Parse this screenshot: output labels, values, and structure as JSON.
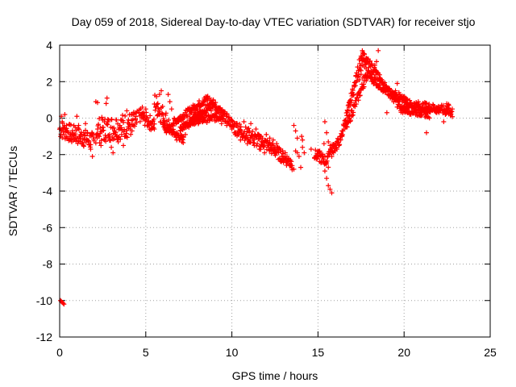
{
  "chart_data": {
    "type": "scatter",
    "title": "Day 059 of 2018, Sidereal Day-to-day VTEC variation (SDTVAR) for receiver stjo",
    "xlabel": "GPS time / hours",
    "ylabel": "SDTVAR / TECUs",
    "xlim": [
      0,
      25
    ],
    "ylim": [
      -12,
      4
    ],
    "xticks": [
      0,
      5,
      10,
      15,
      20,
      25
    ],
    "yticks": [
      -12,
      -10,
      -8,
      -6,
      -4,
      -2,
      0,
      2,
      4
    ],
    "grid": true,
    "marker": "+",
    "series": [
      {
        "name": "SDTVAR",
        "color": "#ff0000",
        "points": [
          [
            0.05,
            -10.0
          ],
          [
            0.1,
            -10.05
          ],
          [
            0.15,
            -10.1
          ],
          [
            0.2,
            -10.15
          ],
          [
            0.25,
            -10.2
          ],
          [
            0.1,
            0.1
          ],
          [
            0.15,
            -0.2
          ],
          [
            0.25,
            -0.5
          ],
          [
            0.3,
            0.2
          ],
          [
            0.4,
            -0.4
          ],
          [
            0.5,
            -0.8
          ],
          [
            0.6,
            -1.0
          ],
          [
            0.7,
            -1.3
          ],
          [
            0.8,
            -0.9
          ],
          [
            0.9,
            -0.5
          ],
          [
            1.0,
            0.1
          ],
          [
            1.1,
            -0.4
          ],
          [
            1.2,
            -1.0
          ],
          [
            1.3,
            -1.4
          ],
          [
            1.4,
            -0.8
          ],
          [
            1.5,
            -0.3
          ],
          [
            1.6,
            -0.8
          ],
          [
            1.7,
            -1.3
          ],
          [
            1.8,
            -1.7
          ],
          [
            1.9,
            -2.1
          ],
          [
            2.1,
            0.9
          ],
          [
            2.2,
            0.85
          ],
          [
            2.2,
            -0.6
          ],
          [
            2.3,
            -1.0
          ],
          [
            2.4,
            -1.5
          ],
          [
            2.5,
            -0.5
          ],
          [
            2.6,
            -1.2
          ],
          [
            2.7,
            0.8
          ],
          [
            2.75,
            1.1
          ],
          [
            2.8,
            -0.2
          ],
          [
            2.9,
            -0.9
          ],
          [
            3.0,
            -1.6
          ],
          [
            3.1,
            -1.9
          ],
          [
            3.2,
            -0.7
          ],
          [
            3.3,
            -0.1
          ],
          [
            3.4,
            -1.3
          ],
          [
            3.5,
            -0.4
          ],
          [
            3.6,
            -0.9
          ],
          [
            3.7,
            -1.5
          ],
          [
            3.9,
            0.4
          ],
          [
            4.0,
            -0.1
          ],
          [
            4.1,
            -0.6
          ],
          [
            4.2,
            -0.7
          ],
          [
            4.3,
            0.2
          ],
          [
            4.4,
            -0.1
          ],
          [
            4.8,
            0.6
          ],
          [
            4.9,
            0.1
          ],
          [
            5.0,
            0.5
          ],
          [
            5.1,
            -0.2
          ],
          [
            5.3,
            -0.3
          ],
          [
            5.5,
            -0.6
          ],
          [
            5.7,
            0.8
          ],
          [
            5.8,
            1.3
          ],
          [
            5.9,
            1.5
          ],
          [
            6.0,
            0.2
          ],
          [
            6.1,
            -0.4
          ],
          [
            6.2,
            -0.8
          ],
          [
            6.3,
            1.3
          ],
          [
            6.4,
            0.9
          ],
          [
            6.5,
            0.5
          ],
          [
            6.6,
            -0.3
          ],
          [
            6.7,
            -0.9
          ],
          [
            6.8,
            -1.2
          ],
          [
            6.9,
            -0.2
          ],
          [
            7.0,
            -0.7
          ],
          [
            7.1,
            -1.3
          ],
          [
            7.2,
            -0.3
          ],
          [
            7.3,
            -0.9
          ],
          [
            7.4,
            0.1
          ],
          [
            7.5,
            -0.5
          ],
          [
            7.6,
            -0.1
          ],
          [
            7.8,
            0.3
          ],
          [
            7.9,
            -0.3
          ],
          [
            8.0,
            0.5
          ],
          [
            8.1,
            -0.2
          ],
          [
            8.2,
            0.7
          ],
          [
            8.3,
            0.1
          ],
          [
            8.4,
            1.0
          ],
          [
            8.5,
            0.3
          ],
          [
            8.6,
            1.2
          ],
          [
            8.7,
            1.1
          ],
          [
            8.8,
            0.4
          ],
          [
            8.9,
            0.8
          ],
          [
            9.0,
            0.2
          ],
          [
            9.1,
            0.4
          ],
          [
            9.2,
            -0.1
          ],
          [
            9.3,
            0.1
          ],
          [
            9.4,
            -0.3
          ],
          [
            9.6,
            -0.2
          ],
          [
            9.7,
            -0.4
          ],
          [
            9.9,
            -0.4
          ],
          [
            10.0,
            -0.6
          ],
          [
            10.1,
            -0.5
          ],
          [
            10.2,
            -0.9
          ],
          [
            10.3,
            -0.3
          ],
          [
            10.4,
            -0.7
          ],
          [
            10.5,
            -1.2
          ],
          [
            10.6,
            -1.0
          ],
          [
            10.7,
            -0.2
          ],
          [
            10.8,
            -1.1
          ],
          [
            10.9,
            -1.4
          ],
          [
            11.0,
            -0.8
          ],
          [
            11.1,
            -0.3
          ],
          [
            11.2,
            -1.0
          ],
          [
            11.3,
            -1.5
          ],
          [
            11.4,
            -0.6
          ],
          [
            11.5,
            -0.9
          ],
          [
            11.6,
            -1.7
          ],
          [
            11.7,
            -1.0
          ],
          [
            11.8,
            -1.3
          ],
          [
            11.9,
            -1.9
          ],
          [
            12.0,
            -0.9
          ],
          [
            12.1,
            -1.4
          ],
          [
            12.2,
            -1.1
          ],
          [
            12.3,
            -1.7
          ],
          [
            12.4,
            -1.2
          ],
          [
            12.5,
            -1.6
          ],
          [
            12.6,
            -1.4
          ],
          [
            12.7,
            -1.9
          ],
          [
            12.8,
            -1.7
          ],
          [
            12.9,
            -2.1
          ],
          [
            13.0,
            -2.2
          ],
          [
            13.1,
            -1.9
          ],
          [
            13.2,
            -2.4
          ],
          [
            13.3,
            -2.2
          ],
          [
            13.4,
            -2.3
          ],
          [
            13.5,
            -2.6
          ],
          [
            13.6,
            -2.8
          ],
          [
            13.7,
            -1.8
          ],
          [
            13.8,
            -1.9
          ],
          [
            13.9,
            -2.1
          ],
          [
            14.0,
            -2.7
          ],
          [
            14.1,
            -1.6
          ],
          [
            14.2,
            -1.9
          ],
          [
            13.6,
            -0.4
          ],
          [
            13.7,
            -0.7
          ],
          [
            13.8,
            -1.1
          ],
          [
            14.05,
            -1.0
          ],
          [
            14.1,
            -1.2
          ],
          [
            14.6,
            -1.7
          ],
          [
            14.8,
            -2.2
          ],
          [
            15.0,
            -2.1
          ],
          [
            15.1,
            -1.8
          ],
          [
            15.2,
            -2.4
          ],
          [
            15.3,
            -2.1
          ],
          [
            15.35,
            -1.4
          ],
          [
            15.4,
            -2.9
          ],
          [
            15.5,
            -3.3
          ],
          [
            15.6,
            -3.7
          ],
          [
            15.7,
            -3.9
          ],
          [
            15.8,
            -4.1
          ],
          [
            15.4,
            -0.2
          ],
          [
            15.5,
            -0.8
          ],
          [
            15.6,
            -1.3
          ],
          [
            15.7,
            -1.5
          ],
          [
            15.8,
            -2.1
          ],
          [
            15.9,
            -1.9
          ],
          [
            16.0,
            -1.8
          ],
          [
            16.1,
            -1.7
          ],
          [
            16.2,
            -1.5
          ],
          [
            16.3,
            -1.2
          ],
          [
            16.4,
            -0.7
          ],
          [
            16.5,
            -0.4
          ],
          [
            16.6,
            -0.1
          ],
          [
            16.7,
            0.3
          ],
          [
            16.8,
            0.6
          ],
          [
            16.9,
            1.0
          ],
          [
            17.0,
            1.4
          ],
          [
            17.1,
            1.8
          ],
          [
            17.2,
            2.3
          ],
          [
            17.3,
            2.8
          ],
          [
            17.4,
            3.2
          ],
          [
            17.5,
            3.4
          ],
          [
            17.6,
            3.6
          ],
          [
            17.7,
            3.5
          ],
          [
            17.8,
            3.3
          ],
          [
            17.9,
            3.1
          ],
          [
            17.5,
            2.6
          ],
          [
            17.6,
            2.9
          ],
          [
            17.7,
            2.8
          ],
          [
            17.8,
            2.7
          ],
          [
            17.9,
            2.5
          ],
          [
            17.4,
            2.1
          ],
          [
            17.5,
            2.4
          ],
          [
            17.6,
            2.2
          ],
          [
            17.7,
            2.3
          ],
          [
            17.8,
            2.2
          ],
          [
            18.0,
            2.5
          ],
          [
            18.1,
            2.2
          ],
          [
            18.2,
            2.0
          ],
          [
            18.3,
            2.9
          ],
          [
            18.4,
            3.1
          ],
          [
            18.5,
            3.7
          ],
          [
            18.6,
            2.2
          ],
          [
            18.7,
            2.0
          ],
          [
            18.8,
            1.9
          ],
          [
            19.0,
            0.3
          ],
          [
            19.1,
            1.6
          ],
          [
            19.2,
            1.3
          ],
          [
            19.3,
            1.1
          ],
          [
            19.4,
            0.9
          ],
          [
            19.5,
            1.5
          ],
          [
            19.6,
            1.9
          ],
          [
            19.7,
            1.4
          ],
          [
            19.8,
            1.2
          ],
          [
            19.9,
            0.9
          ],
          [
            20.0,
            0.5
          ],
          [
            20.1,
            1.1
          ],
          [
            20.2,
            0.8
          ],
          [
            20.3,
            0.6
          ],
          [
            20.4,
            0.7
          ],
          [
            20.5,
            0.6
          ],
          [
            20.6,
            0.5
          ],
          [
            20.7,
            0.7
          ],
          [
            20.8,
            0.6
          ],
          [
            20.9,
            0.5
          ],
          [
            21.0,
            0.5
          ],
          [
            21.1,
            0.4
          ],
          [
            21.2,
            0.6
          ],
          [
            21.3,
            0.5
          ],
          [
            21.3,
            -0.8
          ],
          [
            21.5,
            0.6
          ],
          [
            21.7,
            0.7
          ],
          [
            21.8,
            0.5
          ],
          [
            21.9,
            0.3
          ],
          [
            22.0,
            0.6
          ],
          [
            22.1,
            0.4
          ],
          [
            22.2,
            0.5
          ],
          [
            22.3,
            -0.2
          ],
          [
            22.4,
            0.2
          ],
          [
            22.5,
            0.5
          ],
          [
            22.6,
            0.7
          ],
          [
            22.7,
            0.3
          ],
          [
            22.8,
            0.5
          ]
        ]
      }
    ],
    "bands": [
      {
        "x_start": 0.0,
        "x_end": 2.0,
        "center_start": -0.6,
        "center_end": -1.3,
        "halfwidth": 0.5
      },
      {
        "x_start": 2.1,
        "x_end": 4.5,
        "center_start": -0.7,
        "center_end": -0.3,
        "halfwidth": 0.7
      },
      {
        "x_start": 4.6,
        "x_end": 5.5,
        "center_start": 0.2,
        "center_end": -0.4,
        "halfwidth": 0.4
      },
      {
        "x_start": 5.5,
        "x_end": 6.4,
        "center_start": 0.9,
        "center_end": -0.5,
        "halfwidth": 0.6
      },
      {
        "x_start": 6.0,
        "x_end": 7.2,
        "center_start": -0.4,
        "center_end": -1.2,
        "halfwidth": 0.2
      },
      {
        "x_start": 6.5,
        "x_end": 8.6,
        "center_start": -0.3,
        "center_end": 1.1,
        "halfwidth": 0.2
      },
      {
        "x_start": 7.0,
        "x_end": 8.9,
        "center_start": -0.6,
        "center_end": 0.8,
        "halfwidth": 0.2
      },
      {
        "x_start": 7.5,
        "x_end": 9.5,
        "center_start": -0.2,
        "center_end": 0.1,
        "halfwidth": 0.2
      },
      {
        "x_start": 8.7,
        "x_end": 10.0,
        "center_start": 1.0,
        "center_end": -0.3,
        "halfwidth": 0.25
      },
      {
        "x_start": 10.0,
        "x_end": 11.8,
        "center_start": -0.4,
        "center_end": -1.4,
        "halfwidth": 0.4
      },
      {
        "x_start": 11.8,
        "x_end": 13.5,
        "center_start": -1.3,
        "center_end": -2.5,
        "halfwidth": 0.35
      },
      {
        "x_start": 14.8,
        "x_end": 15.6,
        "center_start": -2.0,
        "center_end": -2.4,
        "halfwidth": 0.3
      },
      {
        "x_start": 15.6,
        "x_end": 16.3,
        "center_start": -1.9,
        "center_end": -1.2,
        "halfwidth": 0.25
      },
      {
        "x_start": 16.3,
        "x_end": 17.6,
        "center_start": -1.2,
        "center_end": 3.5,
        "halfwidth": 0.3
      },
      {
        "x_start": 16.6,
        "x_end": 17.9,
        "center_start": -0.6,
        "center_end": 2.5,
        "halfwidth": 0.25
      },
      {
        "x_start": 17.6,
        "x_end": 18.6,
        "center_start": 3.4,
        "center_end": 2.2,
        "halfwidth": 0.25
      },
      {
        "x_start": 17.9,
        "x_end": 19.2,
        "center_start": 2.4,
        "center_end": 1.3,
        "halfwidth": 0.25
      },
      {
        "x_start": 18.6,
        "x_end": 19.8,
        "center_start": 2.1,
        "center_end": 0.6,
        "halfwidth": 0.25
      },
      {
        "x_start": 19.3,
        "x_end": 20.2,
        "center_start": 1.3,
        "center_end": 0.9,
        "halfwidth": 0.2
      },
      {
        "x_start": 19.8,
        "x_end": 21.5,
        "center_start": 0.5,
        "center_end": 0.2,
        "halfwidth": 0.2
      },
      {
        "x_start": 20.0,
        "x_end": 22.6,
        "center_start": 0.8,
        "center_end": 0.4,
        "halfwidth": 0.25
      },
      {
        "x_start": 22.4,
        "x_end": 22.8,
        "center_start": 0.6,
        "center_end": 0.3,
        "halfwidth": 0.3
      }
    ]
  }
}
